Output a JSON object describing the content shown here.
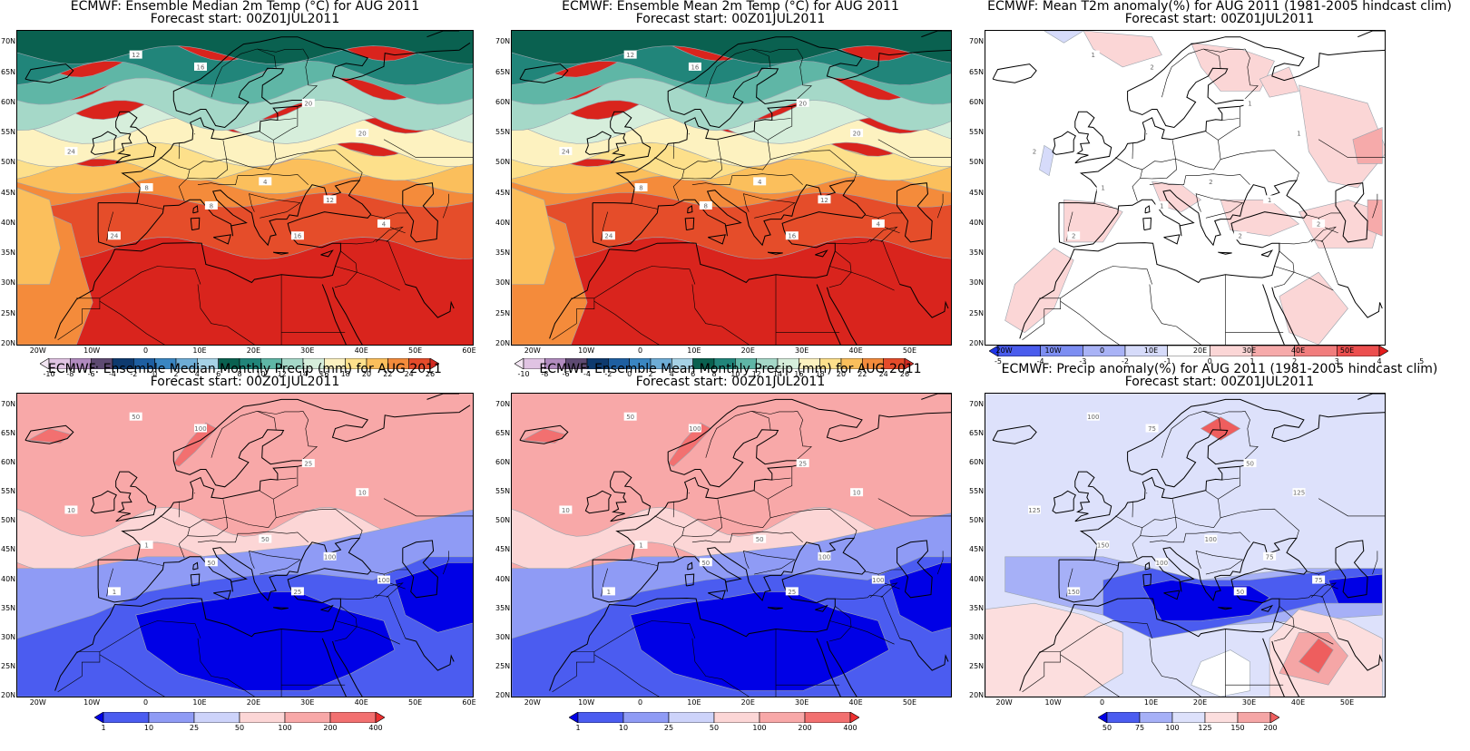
{
  "panels": [
    {
      "id": "median-temp",
      "title_line1": "ECMWF: Ensemble Median 2m Temp (°C) for AUG 2011",
      "title_line2": "Forecast start: 00Z01JUL2011",
      "lon_labels": [
        "20W",
        "10W",
        "0",
        "10E",
        "20E",
        "30E",
        "40E",
        "50E",
        "60E"
      ],
      "colorbar_labels": [
        "-10",
        "-8",
        "-6",
        "-4",
        "-2",
        "0",
        "2",
        "4",
        "6",
        "8",
        "10",
        "12",
        "14",
        "16",
        "18",
        "20",
        "22",
        "24",
        "26"
      ],
      "colorbar_colors": [
        "#f3e6f3",
        "#e0c3e3",
        "#b18bbf",
        "#5e4a72",
        "#0e3a6e",
        "#1e5fa1",
        "#3a86c2",
        "#6eadd6",
        "#a6d2e6",
        "#0a6150",
        "#21857a",
        "#5fb6a6",
        "#a5d8c8",
        "#d6eedb",
        "#fdf2c0",
        "#fde08b",
        "#fbbf5c",
        "#f48b3b",
        "#e54b2a",
        "#d22a22"
      ],
      "contour_labels": [
        "12",
        "16",
        "20",
        "24",
        "8",
        "4"
      ]
    },
    {
      "id": "mean-temp",
      "title_line1": "ECMWF: Ensemble Mean 2m Temp (°C) for AUG 2011",
      "title_line2": "Forecast start: 00Z01JUL2011",
      "lon_labels": [
        "20W",
        "10W",
        "0",
        "10E",
        "20E",
        "30E",
        "40E",
        "50E"
      ],
      "colorbar_labels": [
        "-10",
        "-8",
        "-6",
        "-4",
        "-2",
        "0",
        "2",
        "4",
        "6",
        "8",
        "10",
        "12",
        "14",
        "16",
        "18",
        "20",
        "22",
        "24",
        "26"
      ],
      "colorbar_colors": [
        "#f3e6f3",
        "#e0c3e3",
        "#b18bbf",
        "#5e4a72",
        "#0e3a6e",
        "#1e5fa1",
        "#3a86c2",
        "#6eadd6",
        "#a6d2e6",
        "#0a6150",
        "#21857a",
        "#5fb6a6",
        "#a5d8c8",
        "#d6eedb",
        "#fdf2c0",
        "#fde08b",
        "#fbbf5c",
        "#f48b3b",
        "#e54b2a",
        "#d22a22"
      ],
      "contour_labels": [
        "12",
        "16",
        "20",
        "24",
        "8",
        "4"
      ]
    },
    {
      "id": "t2m-anomaly",
      "title_line1": "ECMWF: Mean T2m anomaly(%) for AUG 2011 (1981-2005 hindcast clim)",
      "title_line2": "Forecast start: 00Z01JUL2011",
      "lon_labels": [
        "20W",
        "10W",
        "0",
        "10E",
        "20E",
        "30E",
        "40E",
        "50E"
      ],
      "colorbar_labels": [
        "-5",
        "-4",
        "-3",
        "-2",
        "-1",
        "0",
        "1",
        "2",
        "3",
        "4",
        "5"
      ],
      "colorbar_colors": [
        "#1f35e8",
        "#4a5ced",
        "#7d8ef2",
        "#a9b3f6",
        "#d6dbfa",
        "#ffffff",
        "#fbd6d6",
        "#f6aaaa",
        "#f17d7d",
        "#ec4f4f",
        "#e41d1d"
      ],
      "contour_labels": [
        "1",
        "2"
      ]
    },
    {
      "id": "median-precip",
      "title_line1": "ECMWF: Ensemble Median Monthly Precip (mm) for AUG 2011",
      "title_line2": "Forecast start: 00Z01JUL2011",
      "lon_labels": [
        "20W",
        "10W",
        "0",
        "10E",
        "20E",
        "30E",
        "40E",
        "50E",
        "60E"
      ],
      "colorbar_labels": [
        "1",
        "10",
        "25",
        "50",
        "100",
        "200",
        "400"
      ],
      "colorbar_colors": [
        "#0000e6",
        "#4b5cf0",
        "#8f9bf5",
        "#cdd3fa",
        "#fcd6d6",
        "#f8a8a8",
        "#f27070",
        "#ec3030"
      ],
      "contour_labels": [
        "50",
        "100",
        "25",
        "10",
        "1"
      ]
    },
    {
      "id": "mean-precip",
      "title_line1": "ECMWF: Ensemble Mean Monthly Precip (mm) for AUG 2011",
      "title_line2": "Forecast start: 00Z01JUL2011",
      "lon_labels": [
        "20W",
        "10W",
        "0",
        "10E",
        "20E",
        "30E",
        "40E",
        "50E"
      ],
      "colorbar_labels": [
        "1",
        "10",
        "25",
        "50",
        "100",
        "200",
        "400"
      ],
      "colorbar_colors": [
        "#0000e6",
        "#4b5cf0",
        "#8f9bf5",
        "#cdd3fa",
        "#fcd6d6",
        "#f8a8a8",
        "#f27070",
        "#ec3030"
      ],
      "contour_labels": [
        "50",
        "100",
        "25",
        "10",
        "1"
      ]
    },
    {
      "id": "precip-anomaly",
      "title_line1": "ECMWF: Precip anomaly(%) for AUG 2011 (1981-2005 hindcast clim)",
      "title_line2": "Forecast start: 00Z01JUL2011",
      "lon_labels": [
        "20W",
        "10W",
        "0",
        "10E",
        "20E",
        "30E",
        "40E",
        "50E"
      ],
      "colorbar_labels": [
        "50",
        "75",
        "100",
        "125",
        "150",
        "200"
      ],
      "colorbar_colors": [
        "#0000e6",
        "#4b5cf0",
        "#a6b0f7",
        "#dde1fb",
        "#fcdede",
        "#f5a6a6",
        "#ee5e5e"
      ],
      "contour_labels": [
        "100",
        "75",
        "50",
        "125",
        "150"
      ]
    }
  ],
  "lat_labels": [
    "70N",
    "65N",
    "60N",
    "55N",
    "50N",
    "45N",
    "40N",
    "35N",
    "30N",
    "25N",
    "20N"
  ]
}
